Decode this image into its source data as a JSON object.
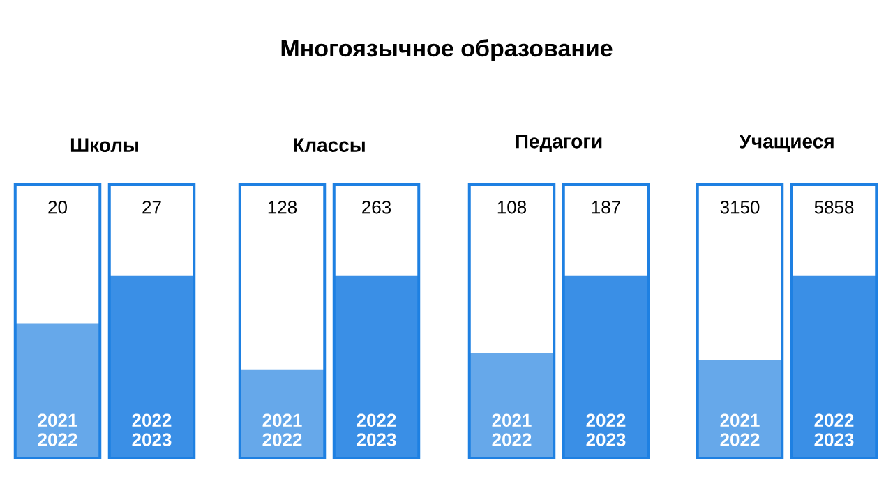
{
  "chart_data": [
    {
      "type": "other",
      "title": "Многоязычное образование"
    },
    {
      "type": "bar",
      "title": "Школы",
      "categories": [
        "2021 2022",
        "2022 2023"
      ],
      "values": [
        20,
        27
      ],
      "colors": [
        "#66a8ea",
        "#3a8fe6"
      ],
      "data_labels": true
    },
    {
      "type": "bar",
      "title": "Классы",
      "categories": [
        "2021 2022",
        "2022 2023"
      ],
      "values": [
        128,
        263
      ],
      "colors": [
        "#66a8ea",
        "#3a8fe6"
      ],
      "data_labels": true
    },
    {
      "type": "bar",
      "title": "Педагоги",
      "categories": [
        "2021 2022",
        "2022 2023"
      ],
      "values": [
        108,
        187
      ],
      "colors": [
        "#66a8ea",
        "#3a8fe6"
      ],
      "data_labels": true
    },
    {
      "type": "bar",
      "title": "Учащиеся",
      "categories": [
        "2021 2022",
        "2022 2023"
      ],
      "values": [
        3150,
        5858
      ],
      "colors": [
        "#66a8ea",
        "#3a8fe6"
      ],
      "data_labels": true
    }
  ]
}
